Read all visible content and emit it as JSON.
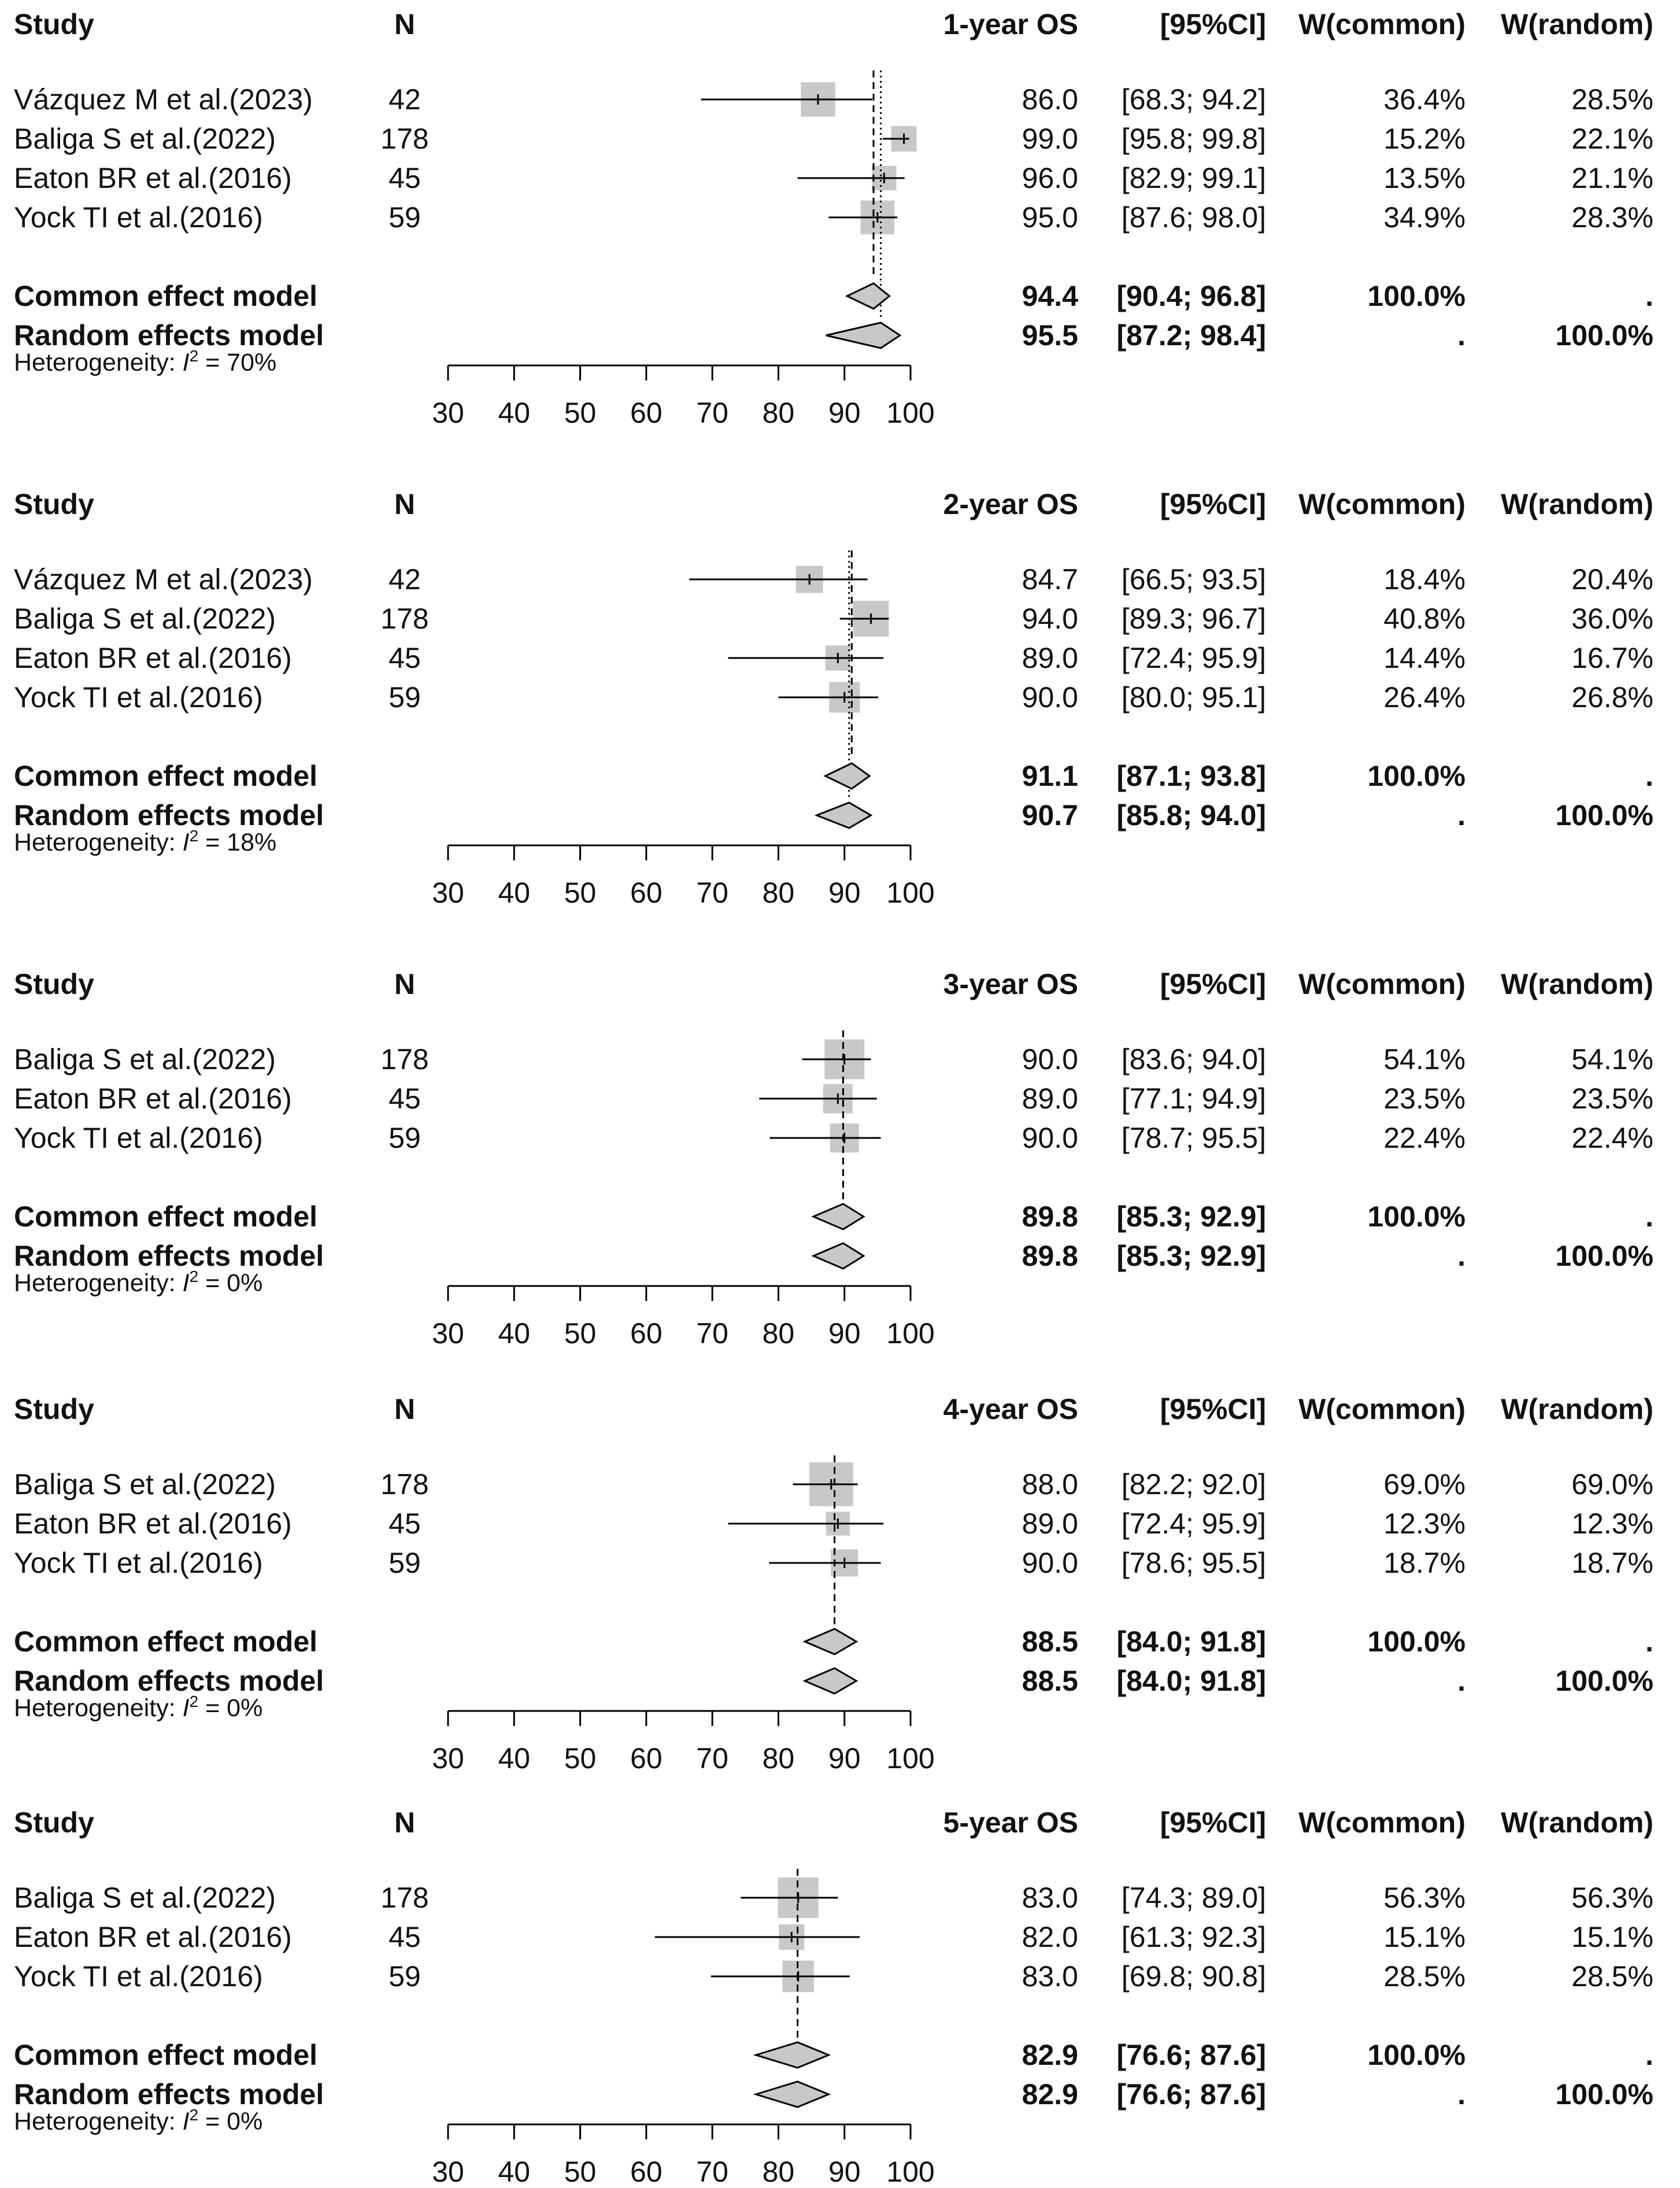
{
  "chart_data": [
    {
      "type": "forest",
      "outcome_label": "1-year OS",
      "headers": {
        "study": "Study",
        "n": "N",
        "outcome": "1-year OS",
        "ci": "[95%CI]",
        "w_common": "W(common)",
        "w_random": "W(random)"
      },
      "xlim": [
        30,
        100
      ],
      "ticks": [
        "30",
        "40",
        "50",
        "60",
        "70",
        "80",
        "90",
        "100"
      ],
      "studies": [
        {
          "name": "Vázquez M et al.(2023)",
          "n": "42",
          "est": 86.0,
          "lo": 68.3,
          "hi": 94.2,
          "est_txt": "86.0",
          "ci_txt": "[68.3; 94.2]",
          "w_common": "36.4%",
          "w_random": "28.5%",
          "weight": 36.4
        },
        {
          "name": "Baliga S et al.(2022)",
          "n": "178",
          "est": 99.0,
          "lo": 95.8,
          "hi": 99.8,
          "est_txt": "99.0",
          "ci_txt": "[95.8; 99.8]",
          "w_common": "15.2%",
          "w_random": "22.1%",
          "weight": 15.2
        },
        {
          "name": "Eaton BR et al.(2016)",
          "n": "45",
          "est": 96.0,
          "lo": 82.9,
          "hi": 99.1,
          "est_txt": "96.0",
          "ci_txt": "[82.9; 99.1]",
          "w_common": "13.5%",
          "w_random": "21.1%",
          "weight": 13.5
        },
        {
          "name": "Yock TI et al.(2016)",
          "n": "59",
          "est": 95.0,
          "lo": 87.6,
          "hi": 98.0,
          "est_txt": "95.0",
          "ci_txt": "[87.6; 98.0]",
          "w_common": "34.9%",
          "w_random": "28.3%",
          "weight": 34.9
        }
      ],
      "common": {
        "label": "Common effect model",
        "est": 94.4,
        "lo": 90.4,
        "hi": 96.8,
        "est_txt": "94.4",
        "ci_txt": "[90.4; 96.8]",
        "w_common": "100.0%",
        "w_random": "."
      },
      "random": {
        "label": "Random effects model",
        "est": 95.5,
        "lo": 87.2,
        "hi": 98.4,
        "est_txt": "95.5",
        "ci_txt": "[87.2; 98.4]",
        "w_common": ".",
        "w_random": "100.0%"
      },
      "heterogeneity": {
        "prefix": "Heterogeneity: ",
        "i": "I",
        "sup": "2",
        "value": " = 70%"
      }
    },
    {
      "type": "forest",
      "outcome_label": "2-year OS",
      "headers": {
        "study": "Study",
        "n": "N",
        "outcome": "2-year OS",
        "ci": "[95%CI]",
        "w_common": "W(common)",
        "w_random": "W(random)"
      },
      "xlim": [
        30,
        100
      ],
      "ticks": [
        "30",
        "40",
        "50",
        "60",
        "70",
        "80",
        "90",
        "100"
      ],
      "studies": [
        {
          "name": "Vázquez M et al.(2023)",
          "n": "42",
          "est": 84.7,
          "lo": 66.5,
          "hi": 93.5,
          "est_txt": "84.7",
          "ci_txt": "[66.5; 93.5]",
          "w_common": "18.4%",
          "w_random": "20.4%",
          "weight": 18.4
        },
        {
          "name": "Baliga S et al.(2022)",
          "n": "178",
          "est": 94.0,
          "lo": 89.3,
          "hi": 96.7,
          "est_txt": "94.0",
          "ci_txt": "[89.3; 96.7]",
          "w_common": "40.8%",
          "w_random": "36.0%",
          "weight": 40.8
        },
        {
          "name": "Eaton BR et al.(2016)",
          "n": "45",
          "est": 89.0,
          "lo": 72.4,
          "hi": 95.9,
          "est_txt": "89.0",
          "ci_txt": "[72.4; 95.9]",
          "w_common": "14.4%",
          "w_random": "16.7%",
          "weight": 14.4
        },
        {
          "name": "Yock TI et al.(2016)",
          "n": "59",
          "est": 90.0,
          "lo": 80.0,
          "hi": 95.1,
          "est_txt": "90.0",
          "ci_txt": "[80.0; 95.1]",
          "w_common": "26.4%",
          "w_random": "26.8%",
          "weight": 26.4
        }
      ],
      "common": {
        "label": "Common effect model",
        "est": 91.1,
        "lo": 87.1,
        "hi": 93.8,
        "est_txt": "91.1",
        "ci_txt": "[87.1; 93.8]",
        "w_common": "100.0%",
        "w_random": "."
      },
      "random": {
        "label": "Random effects model",
        "est": 90.7,
        "lo": 85.8,
        "hi": 94.0,
        "est_txt": "90.7",
        "ci_txt": "[85.8; 94.0]",
        "w_common": ".",
        "w_random": "100.0%"
      },
      "heterogeneity": {
        "prefix": "Heterogeneity: ",
        "i": "I",
        "sup": "2",
        "value": " = 18%"
      }
    },
    {
      "type": "forest",
      "outcome_label": "3-year OS",
      "headers": {
        "study": "Study",
        "n": "N",
        "outcome": "3-year OS",
        "ci": "[95%CI]",
        "w_common": "W(common)",
        "w_random": "W(random)"
      },
      "xlim": [
        30,
        100
      ],
      "ticks": [
        "30",
        "40",
        "50",
        "60",
        "70",
        "80",
        "90",
        "100"
      ],
      "studies": [
        {
          "name": "Baliga S et al.(2022)",
          "n": "178",
          "est": 90.0,
          "lo": 83.6,
          "hi": 94.0,
          "est_txt": "90.0",
          "ci_txt": "[83.6; 94.0]",
          "w_common": "54.1%",
          "w_random": "54.1%",
          "weight": 54.1
        },
        {
          "name": "Eaton BR et al.(2016)",
          "n": "45",
          "est": 89.0,
          "lo": 77.1,
          "hi": 94.9,
          "est_txt": "89.0",
          "ci_txt": "[77.1; 94.9]",
          "w_common": "23.5%",
          "w_random": "23.5%",
          "weight": 23.5
        },
        {
          "name": "Yock TI et al.(2016)",
          "n": "59",
          "est": 90.0,
          "lo": 78.7,
          "hi": 95.5,
          "est_txt": "90.0",
          "ci_txt": "[78.7; 95.5]",
          "w_common": "22.4%",
          "w_random": "22.4%",
          "weight": 22.4
        }
      ],
      "common": {
        "label": "Common effect model",
        "est": 89.8,
        "lo": 85.3,
        "hi": 92.9,
        "est_txt": "89.8",
        "ci_txt": "[85.3; 92.9]",
        "w_common": "100.0%",
        "w_random": "."
      },
      "random": {
        "label": "Random effects model",
        "est": 89.8,
        "lo": 85.3,
        "hi": 92.9,
        "est_txt": "89.8",
        "ci_txt": "[85.3; 92.9]",
        "w_common": ".",
        "w_random": "100.0%"
      },
      "heterogeneity": {
        "prefix": "Heterogeneity: ",
        "i": "I",
        "sup": "2",
        "value": " = 0%"
      }
    },
    {
      "type": "forest",
      "outcome_label": "4-year OS",
      "headers": {
        "study": "Study",
        "n": "N",
        "outcome": "4-year OS",
        "ci": "[95%CI]",
        "w_common": "W(common)",
        "w_random": "W(random)"
      },
      "xlim": [
        30,
        100
      ],
      "ticks": [
        "30",
        "40",
        "50",
        "60",
        "70",
        "80",
        "90",
        "100"
      ],
      "studies": [
        {
          "name": "Baliga S et al.(2022)",
          "n": "178",
          "est": 88.0,
          "lo": 82.2,
          "hi": 92.0,
          "est_txt": "88.0",
          "ci_txt": "[82.2; 92.0]",
          "w_common": "69.0%",
          "w_random": "69.0%",
          "weight": 69.0
        },
        {
          "name": "Eaton BR et al.(2016)",
          "n": "45",
          "est": 89.0,
          "lo": 72.4,
          "hi": 95.9,
          "est_txt": "89.0",
          "ci_txt": "[72.4; 95.9]",
          "w_common": "12.3%",
          "w_random": "12.3%",
          "weight": 12.3
        },
        {
          "name": "Yock TI et al.(2016)",
          "n": "59",
          "est": 90.0,
          "lo": 78.6,
          "hi": 95.5,
          "est_txt": "90.0",
          "ci_txt": "[78.6; 95.5]",
          "w_common": "18.7%",
          "w_random": "18.7%",
          "weight": 18.7
        }
      ],
      "common": {
        "label": "Common effect model",
        "est": 88.5,
        "lo": 84.0,
        "hi": 91.8,
        "est_txt": "88.5",
        "ci_txt": "[84.0; 91.8]",
        "w_common": "100.0%",
        "w_random": "."
      },
      "random": {
        "label": "Random effects model",
        "est": 88.5,
        "lo": 84.0,
        "hi": 91.8,
        "est_txt": "88.5",
        "ci_txt": "[84.0; 91.8]",
        "w_common": ".",
        "w_random": "100.0%"
      },
      "heterogeneity": {
        "prefix": "Heterogeneity: ",
        "i": "I",
        "sup": "2",
        "value": " = 0%"
      }
    },
    {
      "type": "forest",
      "outcome_label": "5-year OS",
      "headers": {
        "study": "Study",
        "n": "N",
        "outcome": "5-year OS",
        "ci": "[95%CI]",
        "w_common": "W(common)",
        "w_random": "W(random)"
      },
      "xlim": [
        30,
        100
      ],
      "ticks": [
        "30",
        "40",
        "50",
        "60",
        "70",
        "80",
        "90",
        "100"
      ],
      "studies": [
        {
          "name": "Baliga S et al.(2022)",
          "n": "178",
          "est": 83.0,
          "lo": 74.3,
          "hi": 89.0,
          "est_txt": "83.0",
          "ci_txt": "[74.3; 89.0]",
          "w_common": "56.3%",
          "w_random": "56.3%",
          "weight": 56.3
        },
        {
          "name": "Eaton BR et al.(2016)",
          "n": "45",
          "est": 82.0,
          "lo": 61.3,
          "hi": 92.3,
          "est_txt": "82.0",
          "ci_txt": "[61.3; 92.3]",
          "w_common": "15.1%",
          "w_random": "15.1%",
          "weight": 15.1
        },
        {
          "name": "Yock TI et al.(2016)",
          "n": "59",
          "est": 83.0,
          "lo": 69.8,
          "hi": 90.8,
          "est_txt": "83.0",
          "ci_txt": "[69.8; 90.8]",
          "w_common": "28.5%",
          "w_random": "28.5%",
          "weight": 28.5
        }
      ],
      "common": {
        "label": "Common effect model",
        "est": 82.9,
        "lo": 76.6,
        "hi": 87.6,
        "est_txt": "82.9",
        "ci_txt": "[76.6; 87.6]",
        "w_common": "100.0%",
        "w_random": "."
      },
      "random": {
        "label": "Random effects model",
        "est": 82.9,
        "lo": 76.6,
        "hi": 87.6,
        "est_txt": "82.9",
        "ci_txt": "[76.6; 87.6]",
        "w_common": ".",
        "w_random": "100.0%"
      },
      "heterogeneity": {
        "prefix": "Heterogeneity: ",
        "i": "I",
        "sup": "2",
        "value": " = 0%"
      }
    }
  ],
  "colors": {
    "box": "#c8c8c8",
    "diamond": "#c8c8c8",
    "line": "#000000",
    "text": "#111111"
  }
}
